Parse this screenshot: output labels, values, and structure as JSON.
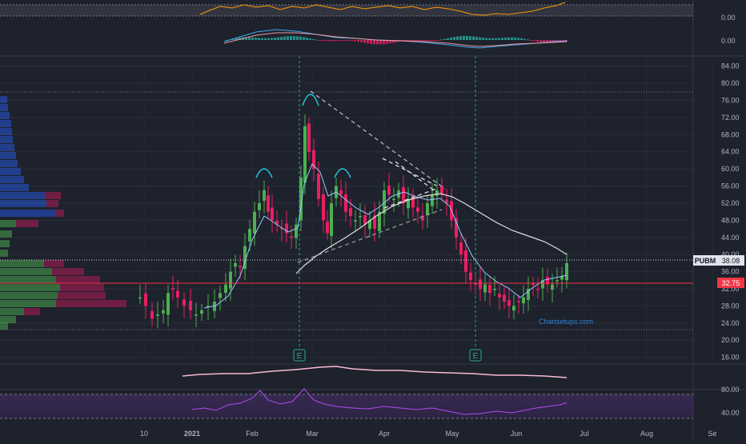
{
  "chart_data": {
    "type": "candlestick",
    "symbol": "PUBM",
    "last_price": "38.08",
    "support_label": "32.75",
    "support_level": 32.75,
    "watermark": "Chartsetups.com",
    "earnings_marker": "E",
    "earnings_dates": [
      "2021-02-25",
      "2021-05-10"
    ],
    "x_axis_ticks": [
      "10",
      "2021",
      "Feb",
      "Mar",
      "Apr",
      "May",
      "Jun",
      "Jul",
      "Aug",
      "Se"
    ],
    "y_axis_ticks": [
      "16.00",
      "20.00",
      "24.00",
      "28.00",
      "32.00",
      "36.00",
      "40.00",
      "44.00",
      "48.00",
      "52.00",
      "56.00",
      "60.00",
      "64.00",
      "68.00",
      "72.00",
      "76.00",
      "80.00",
      "84.00"
    ],
    "ylim": [
      15,
      86
    ],
    "rsi_ticks": [
      "80.00",
      "40.00"
    ],
    "osc1_ticks": [
      "0.00"
    ],
    "osc2_ticks": [
      "0.00"
    ],
    "grid": true,
    "colors": {
      "up": "#4caf50",
      "down": "#e91e63",
      "ma_fast": "#42a5f5",
      "ma_slow": "#e0e0e0",
      "support": "#f23645",
      "rsi": "#7e57c2",
      "osc": "#ff9800"
    },
    "closes": [
      {
        "date": "2020-12-07",
        "close": 29.5
      },
      {
        "date": "2020-12-14",
        "close": 27.0
      },
      {
        "date": "2020-12-21",
        "close": 26.5
      },
      {
        "date": "2020-12-28",
        "close": 28.0
      },
      {
        "date": "2021-01-04",
        "close": 27.0
      },
      {
        "date": "2021-01-11",
        "close": 26.5
      },
      {
        "date": "2021-01-18",
        "close": 27.5
      },
      {
        "date": "2021-01-25",
        "close": 33.0
      },
      {
        "date": "2021-02-01",
        "close": 38.0
      },
      {
        "date": "2021-02-08",
        "close": 50.0
      },
      {
        "date": "2021-02-15",
        "close": 47.0
      },
      {
        "date": "2021-02-22",
        "close": 45.0
      },
      {
        "date": "2021-03-01",
        "close": 65.0
      },
      {
        "date": "2021-03-08",
        "close": 50.0
      },
      {
        "date": "2021-03-15",
        "close": 55.0
      },
      {
        "date": "2021-03-22",
        "close": 50.0
      },
      {
        "date": "2021-03-29",
        "close": 47.0
      },
      {
        "date": "2021-04-05",
        "close": 55.0
      },
      {
        "date": "2021-04-12",
        "close": 52.0
      },
      {
        "date": "2021-04-19",
        "close": 50.0
      },
      {
        "date": "2021-04-26",
        "close": 54.0
      },
      {
        "date": "2021-05-03",
        "close": 50.0
      },
      {
        "date": "2021-05-10",
        "close": 42.0
      },
      {
        "date": "2021-05-17",
        "close": 35.0
      },
      {
        "date": "2021-05-24",
        "close": 33.0
      },
      {
        "date": "2021-05-31",
        "close": 31.0
      },
      {
        "date": "2021-06-07",
        "close": 28.0
      },
      {
        "date": "2021-06-14",
        "close": 33.0
      },
      {
        "date": "2021-06-21",
        "close": 35.0
      },
      {
        "date": "2021-06-25",
        "close": 38.08
      }
    ]
  }
}
